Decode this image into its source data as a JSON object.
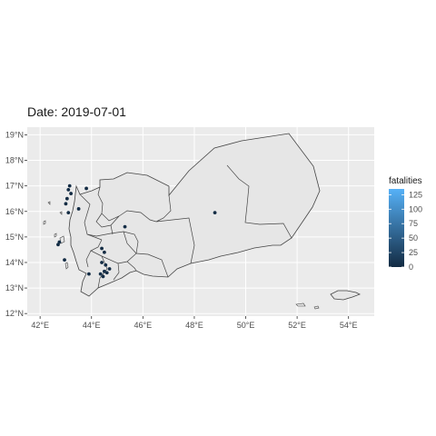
{
  "title": "Date: 2019-07-01",
  "chart_data": {
    "type": "scatter",
    "title": "Date: 2019-07-01",
    "subtype": "choropleth-map-with-event-points",
    "region": "Yemen",
    "xlabel": "",
    "ylabel": "",
    "xlim": [
      41.5,
      55.0
    ],
    "ylim": [
      11.9,
      19.3
    ],
    "x_ticks": [
      "42°E",
      "44°E",
      "46°E",
      "48°E",
      "50°E",
      "52°E",
      "54°E"
    ],
    "y_ticks": [
      "12°N",
      "13°N",
      "14°N",
      "15°N",
      "16°N",
      "17°N",
      "18°N",
      "19°N"
    ],
    "grid": true,
    "legend": {
      "title": "fatalities",
      "position": "right",
      "ticks": [
        "125",
        "100",
        "75",
        "50",
        "25",
        "0"
      ],
      "range": [
        0,
        135
      ],
      "color_low": "#132B43",
      "color_high": "#56B1F7"
    },
    "points": [
      {
        "lon": 43.15,
        "lat": 17.0,
        "fatalities": 1
      },
      {
        "lon": 43.1,
        "lat": 16.85,
        "fatalities": 2
      },
      {
        "lon": 43.2,
        "lat": 16.7,
        "fatalities": 0
      },
      {
        "lon": 43.05,
        "lat": 16.5,
        "fatalities": 1
      },
      {
        "lon": 43.0,
        "lat": 16.3,
        "fatalities": 0
      },
      {
        "lon": 43.1,
        "lat": 15.95,
        "fatalities": 1
      },
      {
        "lon": 43.5,
        "lat": 16.1,
        "fatalities": 2
      },
      {
        "lon": 43.8,
        "lat": 16.9,
        "fatalities": 0
      },
      {
        "lon": 42.75,
        "lat": 14.8,
        "fatalities": 3
      },
      {
        "lon": 42.7,
        "lat": 14.7,
        "fatalities": 1
      },
      {
        "lon": 42.95,
        "lat": 14.1,
        "fatalities": 0
      },
      {
        "lon": 44.4,
        "lat": 14.55,
        "fatalities": 1
      },
      {
        "lon": 44.5,
        "lat": 14.4,
        "fatalities": 0
      },
      {
        "lon": 45.3,
        "lat": 15.4,
        "fatalities": 2
      },
      {
        "lon": 44.4,
        "lat": 14.0,
        "fatalities": 1
      },
      {
        "lon": 44.55,
        "lat": 13.9,
        "fatalities": 4
      },
      {
        "lon": 44.7,
        "lat": 13.75,
        "fatalities": 2
      },
      {
        "lon": 44.5,
        "lat": 13.65,
        "fatalities": 3
      },
      {
        "lon": 44.35,
        "lat": 13.55,
        "fatalities": 5
      },
      {
        "lon": 44.45,
        "lat": 13.45,
        "fatalities": 2
      },
      {
        "lon": 44.6,
        "lat": 13.6,
        "fatalities": 1
      },
      {
        "lon": 43.9,
        "lat": 13.55,
        "fatalities": 1
      },
      {
        "lon": 48.8,
        "lat": 15.95,
        "fatalities": 1
      }
    ]
  },
  "colors": {
    "panel_bg": "#ebebeb",
    "grid": "#ffffff",
    "land": "#e6e6e6",
    "border": "#444444"
  }
}
